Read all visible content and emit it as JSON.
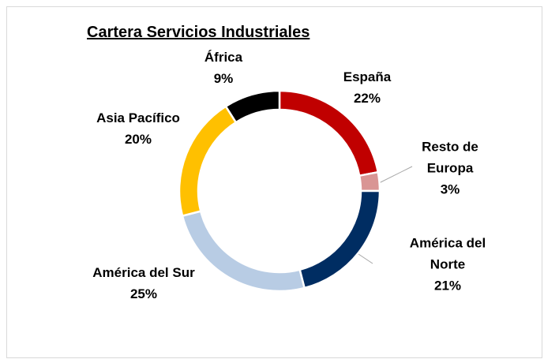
{
  "chart_data": {
    "type": "donut",
    "title": "Cartera Servicios Industriales",
    "labels": [
      "España",
      "Resto de Europa",
      "América del Norte",
      "América del Sur",
      "Asia Pacífico",
      "África"
    ],
    "values": [
      22,
      3,
      21,
      25,
      20,
      9
    ],
    "value_labels": [
      "22%",
      "3%",
      "21%",
      "25%",
      "20%",
      "9%"
    ],
    "colors": [
      "#c00000",
      "#d99594",
      "#002d62",
      "#b8cce4",
      "#ffc000",
      "#000000"
    ]
  }
}
